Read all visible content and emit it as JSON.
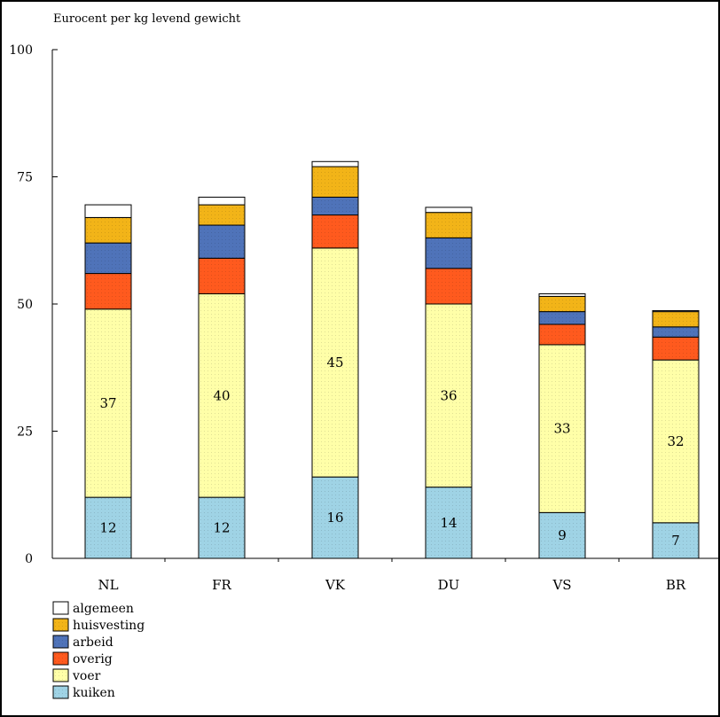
{
  "chart_data": {
    "type": "bar",
    "stacked": true,
    "ylabel": "Eurocent per kg levend gewicht",
    "ylim": [
      0,
      100
    ],
    "yticks": [
      0,
      25,
      50,
      75,
      100
    ],
    "categories": [
      "NL",
      "FR",
      "VK",
      "DU",
      "VS",
      "BR"
    ],
    "series": [
      {
        "name": "kuiken",
        "color": "#9fd3e5",
        "values": [
          12,
          12,
          16,
          14,
          9,
          7
        ]
      },
      {
        "name": "voer",
        "color": "#ffffa8",
        "values": [
          37,
          40,
          45,
          36,
          33,
          32
        ]
      },
      {
        "name": "overig",
        "color": "#ff5a1e",
        "values": [
          7,
          7,
          6.5,
          7,
          4,
          4.5
        ]
      },
      {
        "name": "arbeid",
        "color": "#4f73b9",
        "values": [
          6,
          6.5,
          3.5,
          6,
          2.5,
          2
        ]
      },
      {
        "name": "huisvesting",
        "color": "#f2b418",
        "values": [
          5,
          4,
          6,
          5,
          3,
          3
        ]
      },
      {
        "name": "algemeen",
        "color": "#ffffff",
        "values": [
          2.5,
          1.5,
          1,
          1,
          0.5,
          0.2
        ]
      }
    ],
    "data_labels": {
      "kuiken": [
        "12",
        "12",
        "16",
        "14",
        "9",
        "7"
      ],
      "voer": [
        "37",
        "40",
        "45",
        "36",
        "33",
        "32"
      ]
    },
    "legend_order": [
      "algemeen",
      "huisvesting",
      "arbeid",
      "overig",
      "voer",
      "kuiken"
    ],
    "legend_position": "bottom-left",
    "grid": false
  }
}
